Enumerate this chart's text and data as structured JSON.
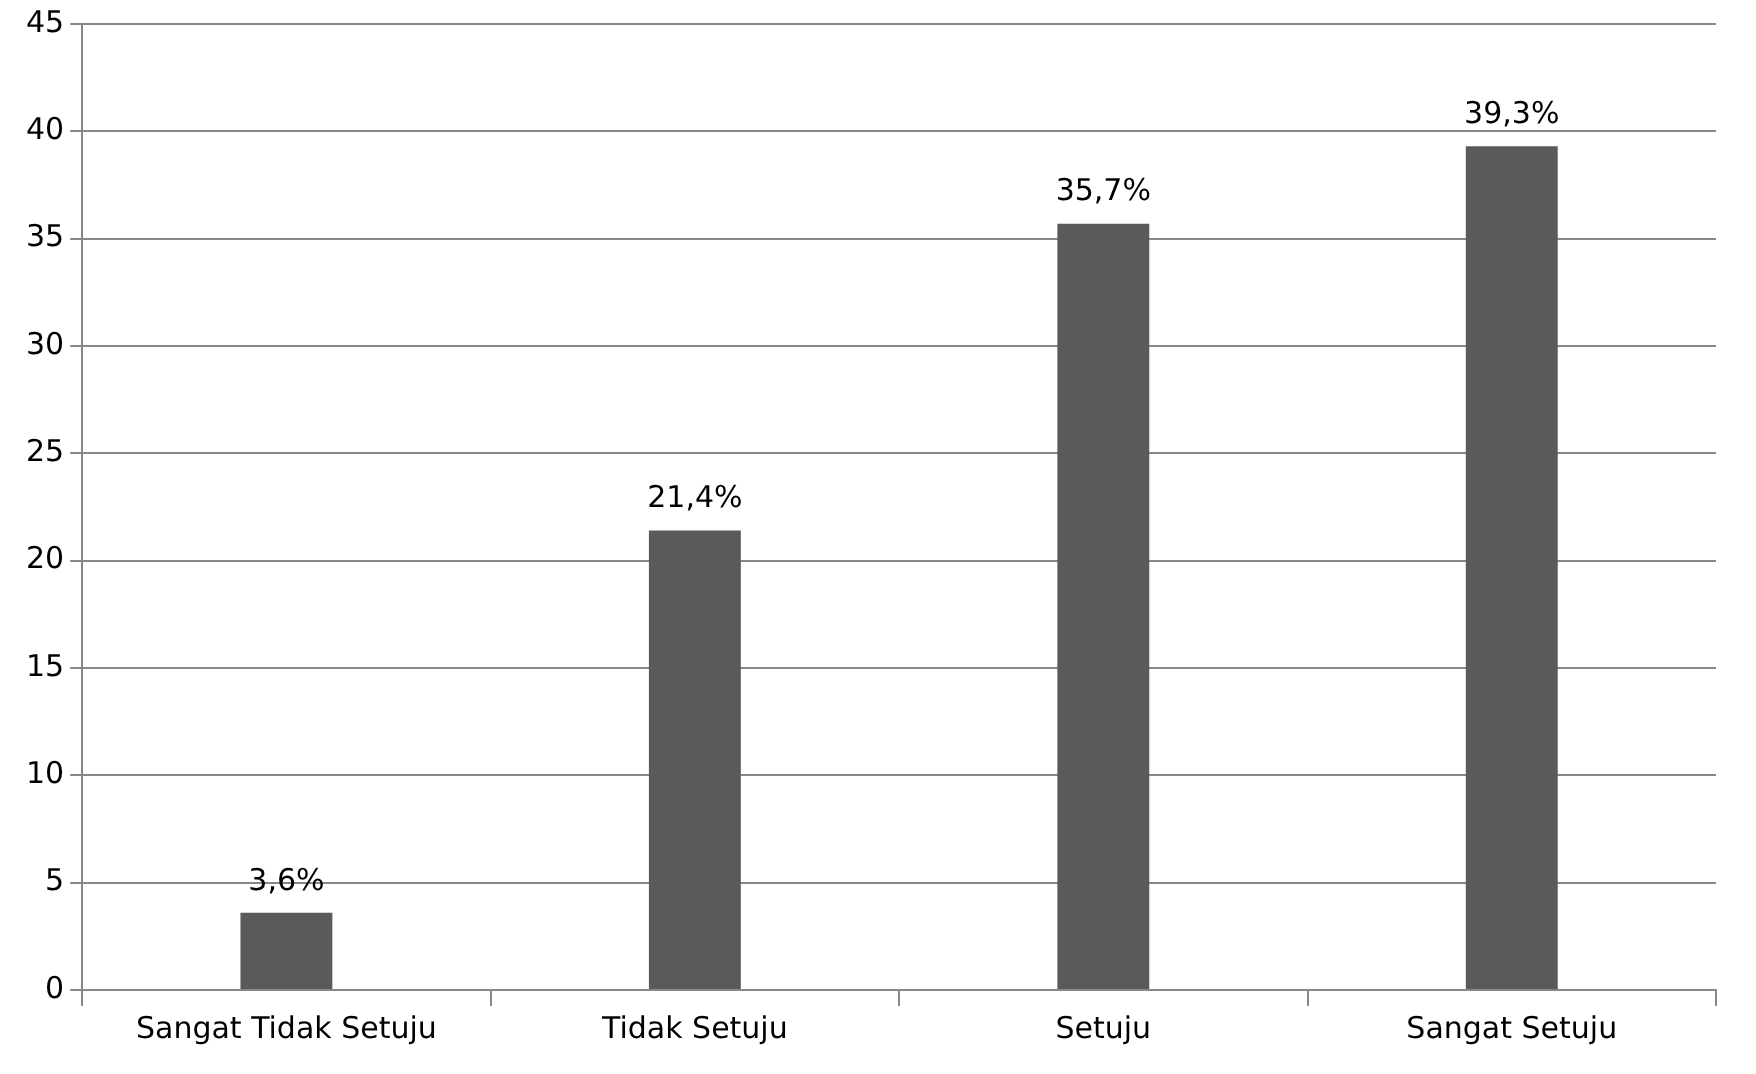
{
  "chart_data": {
    "type": "bar",
    "categories": [
      "Sangat Tidak Setuju",
      "Tidak Setuju",
      "Setuju",
      "Sangat Setuju"
    ],
    "values": [
      3.6,
      21.4,
      35.7,
      39.3
    ],
    "color": "#5a5a5a",
    "value_labels": [
      "3,6%",
      "21,4%",
      "35,7%",
      "39,3%"
    ],
    "ylim": [
      0,
      45
    ],
    "yticks": [
      0,
      5,
      10,
      15,
      20,
      25,
      30,
      35,
      40,
      45
    ],
    "grid": "y",
    "legend": false
  }
}
